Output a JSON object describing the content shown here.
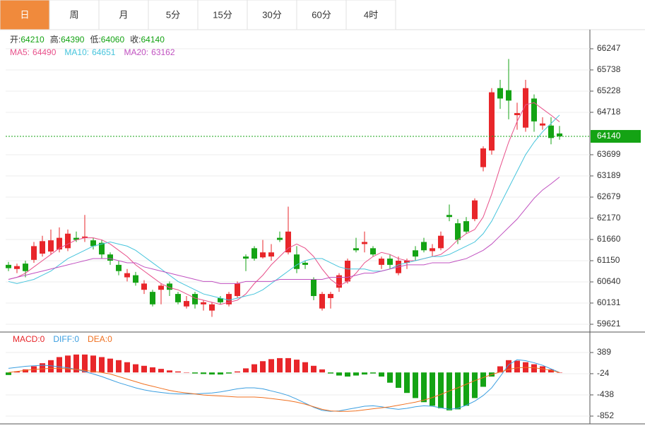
{
  "tabs": [
    "日",
    "周",
    "月",
    "5分",
    "15分",
    "30分",
    "60分",
    "4时"
  ],
  "chart_data": [
    {
      "type": "candlestick",
      "info_labels": [
        "开:",
        "高:",
        "低:",
        "收:"
      ],
      "up_color": "#e8262a",
      "down_color": "#14a314",
      "open": [
        61050,
        60950,
        61080,
        61170,
        61320,
        61370,
        61420,
        61450,
        61700,
        61700,
        61640,
        61580,
        61300,
        61050,
        60750,
        60800,
        60450,
        60400,
        60450,
        60600,
        60350,
        60050,
        60350,
        60100,
        59950,
        60250,
        60100,
        60300,
        61250,
        61450,
        61230,
        61250,
        61700,
        61350,
        61300,
        61100,
        60700,
        60000,
        60250,
        60500,
        60650,
        61450,
        61550,
        61450,
        61050,
        61200,
        60850,
        61100,
        61400,
        61600,
        61380,
        61450,
        62250,
        62050,
        62100,
        62150,
        63400,
        63800,
        65300,
        65250,
        64650,
        64350,
        65050,
        64400,
        64400,
        64210
      ],
      "high": [
        61120,
        61080,
        61150,
        61600,
        61750,
        61900,
        61950,
        61900,
        61850,
        62250,
        61700,
        61650,
        61350,
        61150,
        60950,
        60880,
        60680,
        60450,
        60600,
        60650,
        60400,
        60300,
        60400,
        60200,
        60150,
        60300,
        60400,
        60650,
        61300,
        61500,
        61650,
        61550,
        61850,
        62450,
        61500,
        61150,
        60750,
        60400,
        60400,
        60850,
        61200,
        61700,
        61850,
        61500,
        61250,
        61300,
        61250,
        61200,
        61500,
        61700,
        61550,
        61850,
        62500,
        62150,
        62200,
        62650,
        63900,
        65300,
        65500,
        66000,
        64950,
        65500,
        65150,
        64600,
        64600,
        64390
      ],
      "low": [
        60900,
        60850,
        60750,
        61100,
        61250,
        61300,
        61350,
        61380,
        61600,
        61600,
        61420,
        61200,
        61050,
        60800,
        60650,
        60550,
        60350,
        60050,
        60100,
        60300,
        60100,
        60000,
        60000,
        59950,
        59800,
        60100,
        60050,
        60250,
        60900,
        61150,
        61200,
        61150,
        61600,
        61300,
        60850,
        60950,
        60200,
        59950,
        60000,
        60400,
        60600,
        61350,
        61350,
        61250,
        60950,
        60950,
        60800,
        60950,
        61150,
        61350,
        61250,
        61400,
        62100,
        61550,
        61800,
        62100,
        63300,
        63700,
        64800,
        64550,
        64300,
        64250,
        64250,
        64300,
        63950,
        64060
      ],
      "close": [
        60970,
        61020,
        60900,
        61500,
        61620,
        61640,
        61700,
        61800,
        61650,
        61730,
        61500,
        61300,
        61150,
        60900,
        60850,
        60620,
        60600,
        60100,
        60550,
        60450,
        60150,
        60180,
        60100,
        60150,
        60100,
        60150,
        60350,
        60600,
        61200,
        61200,
        61350,
        61350,
        61650,
        61850,
        60950,
        61050,
        60300,
        60350,
        60350,
        60800,
        61150,
        61400,
        61600,
        61300,
        61200,
        61050,
        61150,
        61150,
        61250,
        61400,
        61450,
        61750,
        62200,
        61650,
        61850,
        62600,
        63850,
        65200,
        65050,
        65000,
        64700,
        65300,
        64500,
        64450,
        64100,
        64140
      ],
      "lines": [
        {
          "name": "MA5:",
          "color": "#e8508a",
          "values": [
            60700,
            60750,
            60850,
            61000,
            61150,
            61300,
            61450,
            61550,
            61650,
            61700,
            61700,
            61650,
            61550,
            61400,
            61250,
            61050,
            60900,
            60750,
            60600,
            60500,
            60450,
            60350,
            60250,
            60200,
            60150,
            60100,
            60150,
            60200,
            60350,
            60600,
            60800,
            61050,
            61250,
            61450,
            61550,
            61450,
            61250,
            60950,
            60700,
            60550,
            60650,
            60850,
            61100,
            61250,
            61350,
            61300,
            61200,
            61150,
            61150,
            61200,
            61250,
            61300,
            61450,
            61650,
            61800,
            61900,
            62200,
            62750,
            63400,
            64000,
            64500,
            64900,
            64950,
            64800,
            64650,
            64490
          ]
        },
        {
          "name": "MA10:",
          "color": "#45c4dc",
          "values": [
            60650,
            60600,
            60650,
            60700,
            60800,
            60900,
            61050,
            61200,
            61300,
            61400,
            61500,
            61550,
            61600,
            61550,
            61500,
            61400,
            61250,
            61100,
            60950,
            60800,
            60650,
            60550,
            60450,
            60350,
            60300,
            60250,
            60200,
            60250,
            60300,
            60350,
            60450,
            60600,
            60750,
            60900,
            61050,
            61150,
            61200,
            61200,
            61100,
            61000,
            60950,
            60950,
            60950,
            60900,
            60900,
            60950,
            61050,
            61100,
            61150,
            61200,
            61250,
            61250,
            61300,
            61400,
            61500,
            61600,
            61800,
            62100,
            62500,
            62900,
            63300,
            63700,
            64000,
            64250,
            64450,
            64651
          ]
        },
        {
          "name": "MA20:",
          "color": "#c050c0",
          "values": [
            60700,
            60750,
            60800,
            60850,
            60900,
            60950,
            61000,
            61050,
            61100,
            61150,
            61200,
            61200,
            61200,
            61150,
            61100,
            61100,
            61000,
            60950,
            60900,
            60850,
            60800,
            60750,
            60700,
            60650,
            60650,
            60600,
            60600,
            60600,
            60650,
            60650,
            60650,
            60650,
            60700,
            60700,
            60700,
            60700,
            60700,
            60700,
            60750,
            60750,
            60750,
            60800,
            60850,
            60850,
            60900,
            60950,
            61000,
            61050,
            61050,
            61050,
            61100,
            61100,
            61100,
            61150,
            61200,
            61300,
            61400,
            61550,
            61750,
            61950,
            62150,
            62400,
            62650,
            62850,
            63000,
            63162
          ]
        }
      ],
      "ylim": [
        59434,
        66706
      ],
      "yticks": [
        66247,
        65738,
        65228,
        64718,
        63699,
        63189,
        62679,
        62170,
        61660,
        61150,
        60640,
        60131,
        59621
      ],
      "grid": true
    },
    {
      "type": "macd",
      "series": [
        {
          "name": "MACD:",
          "color": "#e8262a",
          "negative_color": "#14a314",
          "style": "bar",
          "values": [
            -50,
            20,
            60,
            120,
            180,
            240,
            300,
            330,
            350,
            350,
            330,
            300,
            270,
            240,
            200,
            160,
            130,
            100,
            70,
            40,
            20,
            0,
            -20,
            -30,
            -40,
            -40,
            -20,
            20,
            80,
            160,
            220,
            260,
            280,
            280,
            250,
            200,
            130,
            60,
            -20,
            -60,
            -80,
            -60,
            -40,
            -20,
            -80,
            -200,
            -300,
            -400,
            -500,
            -580,
            -650,
            -700,
            -740,
            -720,
            -650,
            -500,
            -280,
            -80,
            120,
            240,
            230,
            200,
            160,
            120,
            60,
            0
          ]
        },
        {
          "name": "DIFF:",
          "color": "#3a9ee0",
          "style": "line",
          "values": [
            80,
            100,
            120,
            130,
            140,
            130,
            110,
            90,
            60,
            20,
            -30,
            -80,
            -140,
            -200,
            -250,
            -300,
            -340,
            -370,
            -390,
            -410,
            -420,
            -420,
            -420,
            -410,
            -400,
            -380,
            -350,
            -320,
            -300,
            -300,
            -320,
            -360,
            -400,
            -450,
            -520,
            -600,
            -680,
            -740,
            -760,
            -750,
            -720,
            -690,
            -660,
            -650,
            -670,
            -700,
            -720,
            -700,
            -670,
            -650,
            -660,
            -690,
            -720,
            -700,
            -640,
            -560,
            -450,
            -300,
            -80,
            150,
            250,
            230,
            190,
            140,
            70,
            0
          ]
        },
        {
          "name": "DEA:",
          "color": "#f07020",
          "style": "line",
          "values": [
            0,
            20,
            40,
            60,
            70,
            80,
            80,
            70,
            60,
            40,
            20,
            0,
            -30,
            -80,
            -130,
            -180,
            -230,
            -270,
            -310,
            -350,
            -380,
            -400,
            -420,
            -440,
            -450,
            -460,
            -470,
            -480,
            -480,
            -480,
            -490,
            -510,
            -530,
            -550,
            -580,
            -620,
            -670,
            -720,
            -750,
            -760,
            -760,
            -750,
            -730,
            -710,
            -690,
            -670,
            -640,
            -610,
            -580,
            -540,
            -490,
            -430,
            -360,
            -300,
            -230,
            -160,
            -100,
            -40,
            10,
            60,
            90,
            100,
            90,
            70,
            40,
            0
          ]
        }
      ],
      "ylim": [
        -1004,
        789
      ],
      "yticks": [
        389,
        -24,
        -438,
        -852
      ],
      "grid": true
    }
  ]
}
